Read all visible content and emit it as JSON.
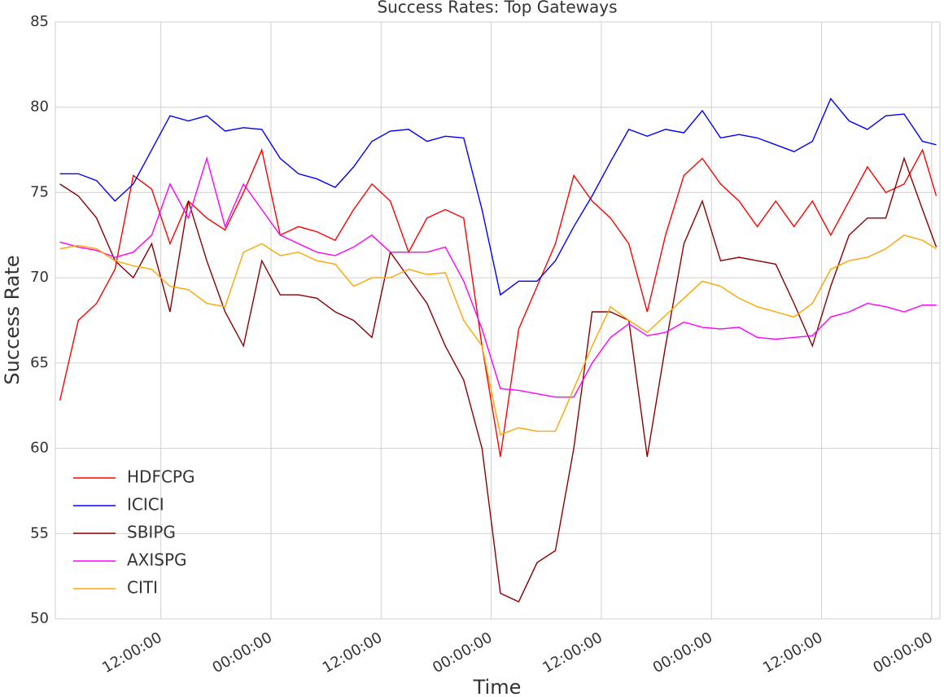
{
  "chart_data": {
    "type": "line",
    "title": "Success Rates: Top Gateways",
    "xlabel": "Time",
    "ylabel": "Success Rate",
    "x": [
      1,
      3,
      5,
      7,
      9,
      11,
      13,
      15,
      17,
      19,
      21,
      23,
      25,
      27,
      29,
      31,
      33,
      35,
      37,
      39,
      41,
      43,
      45,
      47,
      49,
      51,
      53,
      55,
      57,
      59,
      61,
      63,
      65,
      67,
      69,
      71,
      73,
      75,
      77,
      79,
      81,
      83,
      85,
      87,
      89,
      91,
      93,
      95,
      96.5
    ],
    "xlim": [
      0.5,
      96.9
    ],
    "xticks": [
      {
        "value": 12,
        "label": "12:00:00"
      },
      {
        "value": 24,
        "label": "00:00:00"
      },
      {
        "value": 36,
        "label": "12:00:00"
      },
      {
        "value": 48,
        "label": "00:00:00"
      },
      {
        "value": 60,
        "label": "12:00:00"
      },
      {
        "value": 72,
        "label": "00:00:00"
      },
      {
        "value": 84,
        "label": "12:00:00"
      },
      {
        "value": 96,
        "label": "00:00:00"
      }
    ],
    "ylim": [
      50,
      85
    ],
    "yticks": [
      50,
      55,
      60,
      65,
      70,
      75,
      80,
      85
    ],
    "grid": true,
    "legend": "lower left",
    "series": [
      {
        "name": "HDFCPG",
        "color": "#ff0000",
        "values": [
          62.8,
          67.5,
          68.5,
          70.5,
          76,
          75.2,
          72,
          74.5,
          73.5,
          72.8,
          75,
          77.5,
          72.5,
          73,
          72.7,
          72.2,
          74,
          75.5,
          74.5,
          71.5,
          73.5,
          74,
          73.5,
          66,
          59.5,
          67,
          69.5,
          72,
          76,
          74.5,
          73.5,
          72,
          68,
          72.5,
          76,
          77,
          75.5,
          74.5,
          73,
          74.5,
          73,
          74.5,
          72.5,
          74.5,
          76.5,
          75,
          75.5,
          77.5,
          74.8
        ]
      },
      {
        "name": "ICICI",
        "color": "#0000ff",
        "values": [
          76.1,
          76.1,
          75.7,
          74.5,
          75.5,
          77.5,
          79.5,
          79.2,
          79.5,
          78.6,
          78.8,
          78.7,
          77,
          76.1,
          75.8,
          75.3,
          76.5,
          78,
          78.6,
          78.7,
          78,
          78.3,
          78.2,
          74,
          69,
          69.8,
          69.8,
          71,
          73,
          74.8,
          76.8,
          78.7,
          78.3,
          78.7,
          78.5,
          79.8,
          78.2,
          78.4,
          78.2,
          77.8,
          77.4,
          78,
          80.5,
          79.2,
          78.7,
          79.5,
          79.6,
          78,
          77.8
        ]
      },
      {
        "name": "SBIPG",
        "color": "#8b0000",
        "values": [
          75.5,
          74.8,
          73.5,
          71,
          70,
          72,
          68,
          74.5,
          71,
          68,
          66,
          71,
          69,
          69,
          68.8,
          68,
          67.5,
          66.5,
          71.5,
          70,
          68.5,
          66,
          64,
          60,
          51.5,
          51,
          53.3,
          54,
          60,
          68,
          68,
          67.5,
          59.5,
          66,
          72,
          74.5,
          71,
          71.2,
          71,
          70.8,
          68.5,
          66,
          69.5,
          72.5,
          73.5,
          73.5,
          77,
          74,
          71.8
        ]
      },
      {
        "name": "AXISPG",
        "color": "#ff00ff",
        "values": [
          72.1,
          71.8,
          71.6,
          71.2,
          71.5,
          72.5,
          75.5,
          73.5,
          77,
          73,
          75.5,
          74,
          72.5,
          72,
          71.5,
          71.3,
          71.8,
          72.5,
          71.5,
          71.5,
          71.5,
          71.8,
          69.8,
          67,
          63.5,
          63.4,
          63.2,
          63,
          63,
          65,
          66.5,
          67.3,
          66.6,
          66.8,
          67.4,
          67.1,
          67,
          67.1,
          66.5,
          66.4,
          66.5,
          66.6,
          67.7,
          68,
          68.5,
          68.3,
          68,
          68.4,
          68.4
        ]
      },
      {
        "name": "CITI",
        "color": "#ffa500",
        "values": [
          71.7,
          71.9,
          71.7,
          71,
          70.7,
          70.5,
          69.5,
          69.3,
          68.5,
          68.3,
          71.5,
          72,
          71.3,
          71.5,
          71,
          70.8,
          69.5,
          70,
          70,
          70.5,
          70.2,
          70.3,
          67.5,
          66,
          60.8,
          61.2,
          61,
          61,
          63.5,
          66,
          68.3,
          67.5,
          66.8,
          67.8,
          68.8,
          69.8,
          69.5,
          68.8,
          68.3,
          68,
          67.7,
          68.5,
          70.5,
          71,
          71.2,
          71.7,
          72.5,
          72.2,
          71.7
        ]
      }
    ]
  }
}
